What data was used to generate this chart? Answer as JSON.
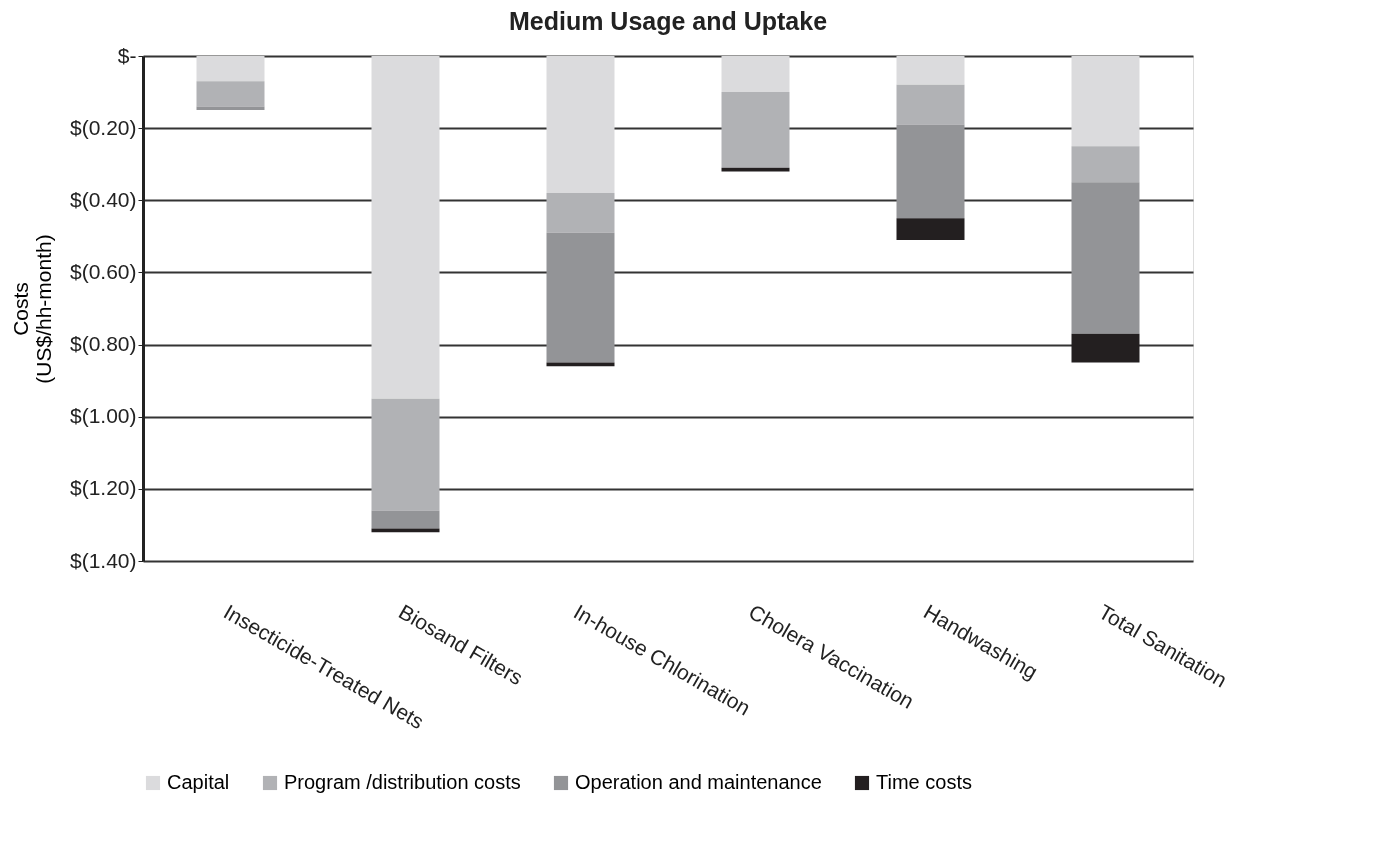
{
  "chart_data": {
    "type": "bar",
    "title": "Medium Usage and Uptake",
    "ylabel": "Costs\n(US$/hh-month)",
    "categories": [
      "Insecticide-Treated Nets",
      "Biosand Filters",
      "In-house Chlorination",
      "Cholera Vaccination",
      "Handwashing",
      "Total Sanitation"
    ],
    "series": [
      {
        "name": "Capital",
        "color": "#dbdbdd",
        "values": [
          -0.07,
          -0.95,
          -0.38,
          -0.1,
          -0.08,
          -0.25
        ]
      },
      {
        "name": "Program /distribution costs",
        "color": "#b1b2b5",
        "values": [
          -0.07,
          -0.31,
          -0.11,
          -0.21,
          -0.11,
          -0.1
        ]
      },
      {
        "name": "Operation and maintenance",
        "color": "#939497",
        "values": [
          -0.01,
          -0.05,
          -0.36,
          0,
          -0.26,
          -0.42
        ]
      },
      {
        "name": "Time costs",
        "color": "#231f20",
        "values": [
          0,
          -0.01,
          -0.01,
          -0.01,
          -0.06,
          -0.08
        ]
      }
    ],
    "stacked": true,
    "ylim": [
      -1.4,
      0
    ],
    "yticks": [
      {
        "value": 0,
        "label": "$-"
      },
      {
        "value": -0.2,
        "label": "$(0.20)"
      },
      {
        "value": -0.4,
        "label": "$(0.40)"
      },
      {
        "value": -0.6,
        "label": "$(0.60)"
      },
      {
        "value": -0.8,
        "label": "$(0.80)"
      },
      {
        "value": -1.0,
        "label": "$(1.00)"
      },
      {
        "value": -1.2,
        "label": "$(1.20)"
      },
      {
        "value": -1.4,
        "label": "$(1.40)"
      }
    ],
    "grid": "y",
    "legend": "bottom"
  }
}
